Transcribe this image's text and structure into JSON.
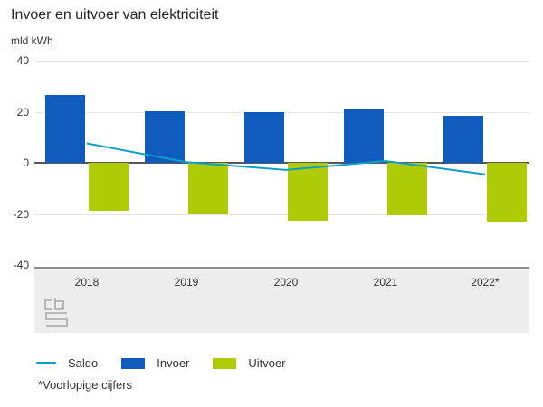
{
  "title": "Invoer en uitvoer van elektriciteit",
  "unit_label": "mld kWh",
  "footnote": "*Voorlopige cijfers",
  "icons": {
    "logo": "cbs-logo"
  },
  "colors": {
    "saldo_line": "#0d9fc5",
    "invoer_bar": "#0f5cbe",
    "uitvoer_bar": "#afcb05",
    "gridline": "#e3e3e3",
    "zero_line": "#57575b",
    "band_background": "#ededed",
    "band_border": "#8f8f8f",
    "text": "#333333",
    "logo_gray": "#a8a8a8"
  },
  "chart_data": {
    "type": "bar",
    "subtype": "grouped bars with line overlay (combo)",
    "title": "Invoer en uitvoer van elektriciteit",
    "ylabel": "mld kWh",
    "xlabel": "",
    "categories": [
      "2018",
      "2019",
      "2020",
      "2021",
      "2022*"
    ],
    "series": [
      {
        "name": "Saldo",
        "type": "line",
        "color": "#0d9fc5",
        "values": [
          7.6,
          0.3,
          -2.8,
          0.7,
          -4.5
        ]
      },
      {
        "name": "Invoer",
        "type": "bar",
        "color": "#0f5cbe",
        "values": [
          26.5,
          20.2,
          19.7,
          21.2,
          18.5
        ]
      },
      {
        "name": "Uitvoer",
        "type": "bar",
        "color": "#afcb05",
        "values": [
          -18.9,
          -20.1,
          -22.5,
          -20.5,
          -23.0
        ]
      }
    ],
    "ylim": [
      -40,
      40
    ],
    "yticks": [
      40,
      20,
      0,
      -20,
      -40
    ],
    "grid": "horizontal gridlines on",
    "legend_position": "bottom-left"
  }
}
